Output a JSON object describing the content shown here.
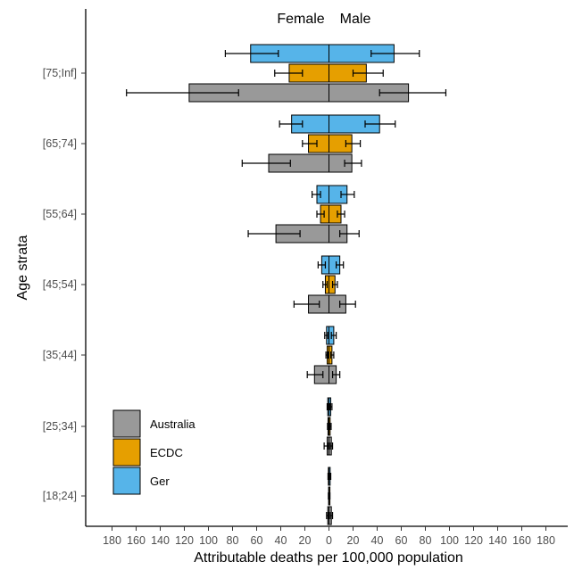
{
  "chart_data": {
    "type": "bar",
    "orientation": "horizontal",
    "layout": "population-pyramid",
    "top_labels": {
      "left": "Female",
      "right": "Male"
    },
    "xlabel": "Attributable deaths per 100,000 population",
    "ylabel": "Age strata",
    "xlim": [
      -180,
      180
    ],
    "x_ticks": [
      -180,
      -160,
      -140,
      -120,
      -100,
      -80,
      -60,
      -40,
      -20,
      0,
      20,
      40,
      60,
      80,
      100,
      120,
      140,
      160,
      180
    ],
    "x_tick_labels": [
      "180",
      "160",
      "140",
      "120",
      "100",
      "80",
      "60",
      "40",
      "20",
      "0",
      "20",
      "40",
      "60",
      "80",
      "100",
      "120",
      "140",
      "160",
      "180"
    ],
    "categories": [
      "[18;24]",
      "[25;34]",
      "[35;44]",
      "[45;54]",
      "[55;64]",
      "[65;74]",
      "[75;Inf]"
    ],
    "grid": false,
    "legend_position": "bottom-left",
    "series": [
      {
        "name": "Ger",
        "color": "#56B4E9",
        "female": [
          0.5,
          1.0,
          2.0,
          6.0,
          10.0,
          31.0,
          65.0
        ],
        "male": [
          1.0,
          1.5,
          4.0,
          9.0,
          15.0,
          42.0,
          54.0
        ],
        "female_ci": [
          [
            0.2,
            0.8
          ],
          [
            0.5,
            1.5
          ],
          [
            1.0,
            3.5
          ],
          [
            3.0,
            9.0
          ],
          [
            7.0,
            14.0
          ],
          [
            22.0,
            41.0
          ],
          [
            42.0,
            86.0
          ]
        ],
        "male_ci": [
          [
            0.5,
            1.5
          ],
          [
            0.8,
            2.5
          ],
          [
            2.0,
            6.0
          ],
          [
            6.0,
            12.0
          ],
          [
            10.0,
            21.0
          ],
          [
            30.0,
            55.0
          ],
          [
            35.0,
            75.0
          ]
        ]
      },
      {
        "name": "ECDC",
        "color": "#E69F00",
        "female": [
          0.3,
          0.8,
          1.5,
          3.0,
          7.0,
          17.0,
          33.0
        ],
        "male": [
          0.5,
          1.0,
          2.5,
          5.0,
          10.0,
          19.0,
          31.0
        ],
        "female_ci": [
          [
            0.1,
            0.5
          ],
          [
            0.4,
            1.2
          ],
          [
            0.8,
            2.5
          ],
          [
            1.5,
            5.0
          ],
          [
            4.0,
            10.0
          ],
          [
            10.0,
            22.0
          ],
          [
            22.0,
            45.0
          ]
        ],
        "male_ci": [
          [
            0.2,
            0.8
          ],
          [
            0.5,
            1.8
          ],
          [
            1.5,
            4.0
          ],
          [
            3.0,
            7.0
          ],
          [
            7.0,
            13.0
          ],
          [
            14.0,
            26.0
          ],
          [
            20.0,
            45.0
          ]
        ]
      },
      {
        "name": "Australia",
        "color": "#999999",
        "female": [
          1.0,
          1.5,
          12.0,
          17.0,
          44.0,
          50.0,
          116.0
        ],
        "male": [
          2.0,
          2.0,
          6.0,
          14.0,
          15.0,
          19.0,
          66.0
        ],
        "female_ci": [
          [
            0.5,
            2.0
          ],
          [
            0.5,
            4.0
          ],
          [
            5.0,
            18.0
          ],
          [
            8.0,
            29.0
          ],
          [
            24.0,
            67.0
          ],
          [
            32.0,
            72.0
          ],
          [
            75.0,
            168.0
          ]
        ],
        "male_ci": [
          [
            1.0,
            3.0
          ],
          [
            1.0,
            3.0
          ],
          [
            3.0,
            9.0
          ],
          [
            9.0,
            22.0
          ],
          [
            9.0,
            25.0
          ],
          [
            13.0,
            27.0
          ],
          [
            42.0,
            97.0
          ]
        ]
      }
    ],
    "legend": [
      "Australia",
      "ECDC",
      "Ger"
    ]
  }
}
